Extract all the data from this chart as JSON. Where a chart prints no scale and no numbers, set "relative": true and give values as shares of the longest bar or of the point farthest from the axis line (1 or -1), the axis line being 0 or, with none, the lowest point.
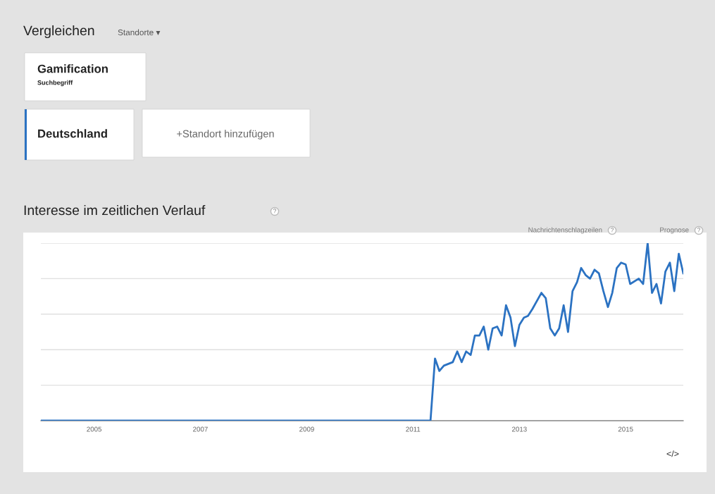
{
  "chart_data": {
    "type": "line",
    "title": "Interesse im zeitlichen Verlauf",
    "annotations": [
      "Vergleichen",
      "Standorte ▾",
      "Gamification",
      "Suchbegriff",
      "Deutschland",
      "+Standort hinzufügen",
      "Nachrichtenschlagzeilen",
      "Prognose",
      "</>",
      "?",
      "?",
      "?"
    ],
    "relative": true,
    "grid": "y",
    "marker": "none",
    "line_style": "solid",
    "xlim": [
      "2004-01",
      "2016-02"
    ],
    "xticks": [
      {
        "value": "2005-01",
        "label": "2005"
      },
      {
        "value": "2007-01",
        "label": "2007"
      },
      {
        "value": "2009-01",
        "label": "2009"
      },
      {
        "value": "2011-01",
        "label": "2011"
      },
      {
        "value": "2013-01",
        "label": "2013"
      },
      {
        "value": "2015-01",
        "label": "2015"
      }
    ],
    "series": [
      {
        "color": "#2b72c2",
        "x": [
          "2004-01",
          "2011-05",
          "2011-06",
          "2011-07",
          "2011-08",
          "2011-10",
          "2011-11",
          "2011-12",
          "2012-01",
          "2012-02",
          "2012-03",
          "2012-04",
          "2012-05",
          "2012-06",
          "2012-07",
          "2012-08",
          "2012-09",
          "2012-10",
          "2012-11",
          "2012-12",
          "2013-01",
          "2013-02",
          "2013-03",
          "2013-04",
          "2013-06",
          "2013-07",
          "2013-08",
          "2013-09",
          "2013-10",
          "2013-11",
          "2013-12",
          "2014-01",
          "2014-02",
          "2014-03",
          "2014-04",
          "2014-05",
          "2014-06",
          "2014-07",
          "2014-08",
          "2014-09",
          "2014-10",
          "2014-11",
          "2014-12",
          "2015-01",
          "2015-02",
          "2015-04",
          "2015-05",
          "2015-06",
          "2015-07",
          "2015-08",
          "2015-09",
          "2015-10",
          "2015-11",
          "2015-12",
          "2016-01",
          "2016-02"
        ],
        "values": [
          0,
          0,
          0.35,
          0.28,
          0.31,
          0.33,
          0.39,
          0.33,
          0.39,
          0.37,
          0.48,
          0.48,
          0.53,
          0.4,
          0.52,
          0.53,
          0.48,
          0.65,
          0.58,
          0.42,
          0.54,
          0.58,
          0.59,
          0.63,
          0.72,
          0.69,
          0.52,
          0.48,
          0.52,
          0.65,
          0.5,
          0.73,
          0.78,
          0.86,
          0.82,
          0.8,
          0.85,
          0.83,
          0.73,
          0.64,
          0.72,
          0.86,
          0.89,
          0.88,
          0.77,
          0.8,
          0.77,
          1,
          0.72,
          0.77,
          0.66,
          0.84,
          0.89,
          0.73,
          0.94,
          0.83
        ]
      }
    ]
  }
}
